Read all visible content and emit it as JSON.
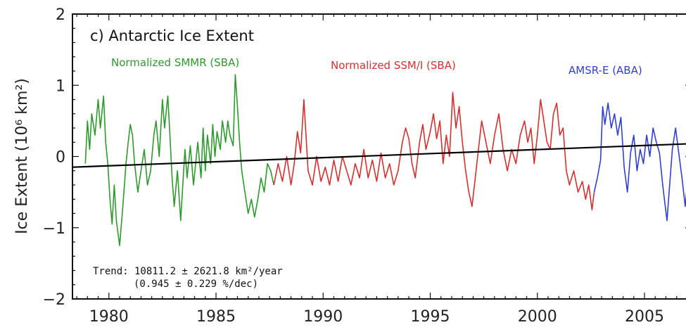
{
  "chart_data": {
    "type": "line",
    "title": "c) Antarctic Ice Extent",
    "ylabel": "Ice Extent (10⁶ km²)",
    "xlabel": "",
    "xlim": [
      1978.3,
      2007.2
    ],
    "ylim": [
      -2,
      2
    ],
    "x_ticks": [
      1980,
      1985,
      1990,
      1995,
      2000,
      2005
    ],
    "y_ticks": [
      -2,
      -1,
      0,
      1,
      2
    ],
    "grid": false,
    "series": [
      {
        "name": "Normalized SMMR (SBA)",
        "color": "#2e9a2e",
        "x": [
          1978.9,
          1979.0,
          1979.1,
          1979.2,
          1979.35,
          1979.5,
          1979.6,
          1979.75,
          1979.85,
          1979.95,
          1980.05,
          1980.15,
          1980.25,
          1980.35,
          1980.5,
          1980.65,
          1980.8,
          1980.9,
          1981.0,
          1981.1,
          1981.2,
          1981.35,
          1981.5,
          1981.65,
          1981.8,
          1981.95,
          1982.1,
          1982.2,
          1982.35,
          1982.5,
          1982.6,
          1982.75,
          1982.85,
          1982.95,
          1983.05,
          1983.2,
          1983.35,
          1983.45,
          1983.55,
          1983.65,
          1983.8,
          1983.95,
          1984.05,
          1984.15,
          1984.3,
          1984.4,
          1984.5,
          1984.6,
          1984.75,
          1984.85,
          1984.95,
          1985.05,
          1985.2,
          1985.3,
          1985.45,
          1985.55,
          1985.65,
          1985.8,
          1985.9,
          1986.0,
          1986.1,
          1986.2,
          1986.35,
          1986.5,
          1986.65,
          1986.8,
          1986.95,
          1987.1,
          1987.25,
          1987.4,
          1987.55,
          1987.7
        ],
        "y": [
          -0.1,
          0.5,
          0.1,
          0.6,
          0.3,
          0.8,
          0.4,
          0.85,
          0.2,
          -0.1,
          -0.6,
          -0.95,
          -0.4,
          -0.9,
          -1.25,
          -0.7,
          -0.1,
          0.2,
          0.45,
          0.3,
          -0.1,
          -0.5,
          -0.2,
          0.1,
          -0.4,
          -0.2,
          0.3,
          0.5,
          0.0,
          0.8,
          0.4,
          0.85,
          0.3,
          -0.3,
          -0.7,
          -0.2,
          -0.9,
          -0.4,
          0.1,
          -0.3,
          0.15,
          -0.4,
          -0.1,
          0.2,
          -0.3,
          0.4,
          -0.2,
          0.3,
          -0.1,
          0.45,
          0.0,
          0.35,
          0.1,
          0.5,
          0.2,
          0.5,
          0.3,
          0.15,
          1.15,
          0.7,
          0.2,
          -0.2,
          -0.5,
          -0.8,
          -0.6,
          -0.85,
          -0.6,
          -0.3,
          -0.5,
          -0.1,
          -0.2,
          -0.4
        ]
      },
      {
        "name": "Normalized SSM/I (SBA)",
        "color": "#d62f2f",
        "x": [
          1987.7,
          1987.9,
          1988.1,
          1988.3,
          1988.5,
          1988.65,
          1988.8,
          1988.95,
          1989.1,
          1989.3,
          1989.5,
          1989.7,
          1989.9,
          1990.1,
          1990.3,
          1990.5,
          1990.7,
          1990.9,
          1991.1,
          1991.3,
          1991.5,
          1991.7,
          1991.9,
          1992.1,
          1992.3,
          1992.5,
          1992.7,
          1992.9,
          1993.1,
          1993.3,
          1993.5,
          1993.7,
          1993.85,
          1994.0,
          1994.15,
          1994.3,
          1994.5,
          1994.65,
          1994.8,
          1995.0,
          1995.15,
          1995.3,
          1995.45,
          1995.6,
          1995.75,
          1995.9,
          1996.05,
          1996.2,
          1996.35,
          1996.5,
          1996.65,
          1996.8,
          1996.95,
          1997.1,
          1997.25,
          1997.4,
          1997.6,
          1997.8,
          1998.0,
          1998.2,
          1998.4,
          1998.6,
          1998.8,
          1999.0,
          1999.2,
          1999.4,
          1999.55,
          1999.7,
          1999.85,
          2000.0,
          2000.15,
          2000.3,
          2000.45,
          2000.6,
          2000.75,
          2000.9,
          2001.05,
          2001.2,
          2001.35,
          2001.5,
          2001.7,
          2001.9,
          2002.1,
          2002.25,
          2002.4,
          2002.55,
          2002.65
        ],
        "y": [
          -0.4,
          -0.1,
          -0.35,
          0.0,
          -0.4,
          -0.1,
          0.35,
          0.05,
          0.8,
          -0.2,
          -0.4,
          0.0,
          -0.35,
          -0.15,
          -0.4,
          -0.05,
          -0.35,
          0.0,
          -0.2,
          -0.4,
          -0.1,
          -0.3,
          0.1,
          -0.3,
          -0.05,
          -0.35,
          0.05,
          -0.3,
          -0.1,
          -0.4,
          -0.2,
          0.2,
          0.4,
          0.25,
          -0.1,
          -0.3,
          0.2,
          0.45,
          0.1,
          0.35,
          0.6,
          0.25,
          0.5,
          -0.1,
          0.3,
          0.0,
          0.9,
          0.4,
          0.7,
          0.2,
          -0.2,
          -0.5,
          -0.7,
          -0.3,
          0.1,
          0.5,
          0.2,
          -0.1,
          0.3,
          0.6,
          0.1,
          -0.2,
          0.1,
          -0.1,
          0.3,
          0.5,
          0.2,
          0.4,
          -0.1,
          0.3,
          0.8,
          0.5,
          0.2,
          0.1,
          0.6,
          0.75,
          0.3,
          0.4,
          -0.2,
          -0.4,
          -0.2,
          -0.5,
          -0.35,
          -0.6,
          -0.4,
          -0.75,
          -0.5
        ]
      },
      {
        "name": "AMSR-E (ABA)",
        "color": "#2f3fd6",
        "x": [
          2002.65,
          2002.8,
          2002.95,
          2003.05,
          2003.15,
          2003.3,
          2003.45,
          2003.6,
          2003.75,
          2003.9,
          2004.05,
          2004.2,
          2004.35,
          2004.5,
          2004.65,
          2004.8,
          2004.95,
          2005.1,
          2005.25,
          2005.4,
          2005.55,
          2005.7,
          2005.85,
          2005.95,
          2006.05,
          2006.15,
          2006.3,
          2006.45,
          2006.6,
          2006.75,
          2006.9,
          2007.05,
          2007.15
        ],
        "y": [
          -0.5,
          -0.3,
          -0.05,
          0.7,
          0.45,
          0.75,
          0.4,
          0.6,
          0.3,
          0.55,
          -0.15,
          -0.5,
          0.05,
          0.3,
          -0.2,
          0.1,
          -0.1,
          0.3,
          0.0,
          0.4,
          0.2,
          0.05,
          -0.4,
          -0.65,
          -0.9,
          -0.5,
          0.1,
          0.4,
          0.05,
          -0.3,
          -0.7,
          -0.2,
          0.5
        ]
      }
    ],
    "trend_line": {
      "x": [
        1978.3,
        2007.2
      ],
      "y": [
        -0.15,
        0.18
      ],
      "color": "#000000"
    },
    "annotations": {
      "smmr_label": "Normalized SMMR (SBA)",
      "ssmi_label": "Normalized SSM/I (SBA)",
      "amsre_label": "AMSR-E (ABA)",
      "trend_line1": "Trend: 10811.2 ± 2621.8  km²/year",
      "trend_line2": "(0.945 ± 0.229  %/dec)"
    }
  }
}
